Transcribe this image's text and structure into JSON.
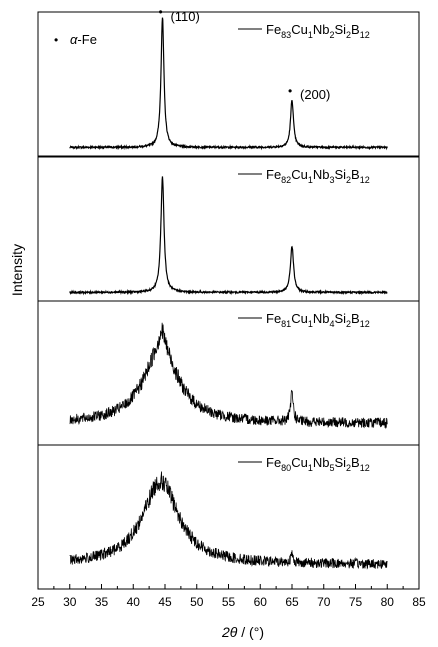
{
  "chart_data": {
    "type": "line",
    "ylabel": "Intensity",
    "xlabel_parts": {
      "symbol": "2θ",
      "unit": " / (°)"
    },
    "xlim": [
      25,
      85
    ],
    "xticks": [
      25,
      30,
      35,
      40,
      45,
      50,
      55,
      60,
      65,
      70,
      75,
      80,
      85
    ],
    "y_ticks_shown": false,
    "legend_position": "top-right of each panel",
    "annotations": {
      "phase_marker": "•",
      "phase_label": "α-Fe",
      "peak_110": "(110)",
      "peak_200": "(200)"
    },
    "series": [
      {
        "name": "Fe83Cu1Nb2Si2B12",
        "name_parts": [
          "Fe",
          "83",
          "Cu",
          "1",
          "Nb",
          "2",
          "Si",
          "2",
          "B",
          "12"
        ],
        "x_range": [
          30,
          80
        ],
        "baseline": 0.06,
        "noise": 0.006,
        "peaks": [
          {
            "x": 44.6,
            "height": 0.9,
            "width": 0.28
          },
          {
            "x": 65.0,
            "height": 0.33,
            "width": 0.28
          }
        ]
      },
      {
        "name": "Fe82Cu1Nb3Si2B12",
        "name_parts": [
          "Fe",
          "82",
          "Cu",
          "1",
          "Nb",
          "3",
          "Si",
          "2",
          "B",
          "12"
        ],
        "x_range": [
          30,
          80
        ],
        "baseline": 0.06,
        "noise": 0.006,
        "peaks": [
          {
            "x": 44.6,
            "height": 0.8,
            "width": 0.3
          },
          {
            "x": 65.0,
            "height": 0.32,
            "width": 0.3
          }
        ]
      },
      {
        "name": "Fe81Cu1Nb4Si2B12",
        "name_parts": [
          "Fe",
          "81",
          "Cu",
          "1",
          "Nb",
          "4",
          "Si",
          "2",
          "B",
          "12"
        ],
        "x_range": [
          30,
          80
        ],
        "baseline": 0.15,
        "noise": 0.035,
        "peaks": [
          {
            "x": 44.4,
            "height": 0.52,
            "width": 3.3
          },
          {
            "x": 44.5,
            "height": 0.12,
            "width": 0.6
          },
          {
            "x": 65.0,
            "height": 0.2,
            "width": 0.25
          }
        ]
      },
      {
        "name": "Fe80Cu1Nb5Si2B12",
        "name_parts": [
          "Fe",
          "80",
          "Cu",
          "1",
          "Nb",
          "5",
          "Si",
          "2",
          "B",
          "12"
        ],
        "x_range": [
          30,
          80
        ],
        "baseline": 0.17,
        "noise": 0.035,
        "peaks": [
          {
            "x": 44.3,
            "height": 0.58,
            "width": 3.4
          },
          {
            "x": 65.0,
            "height": 0.05,
            "width": 0.25
          }
        ]
      }
    ]
  }
}
